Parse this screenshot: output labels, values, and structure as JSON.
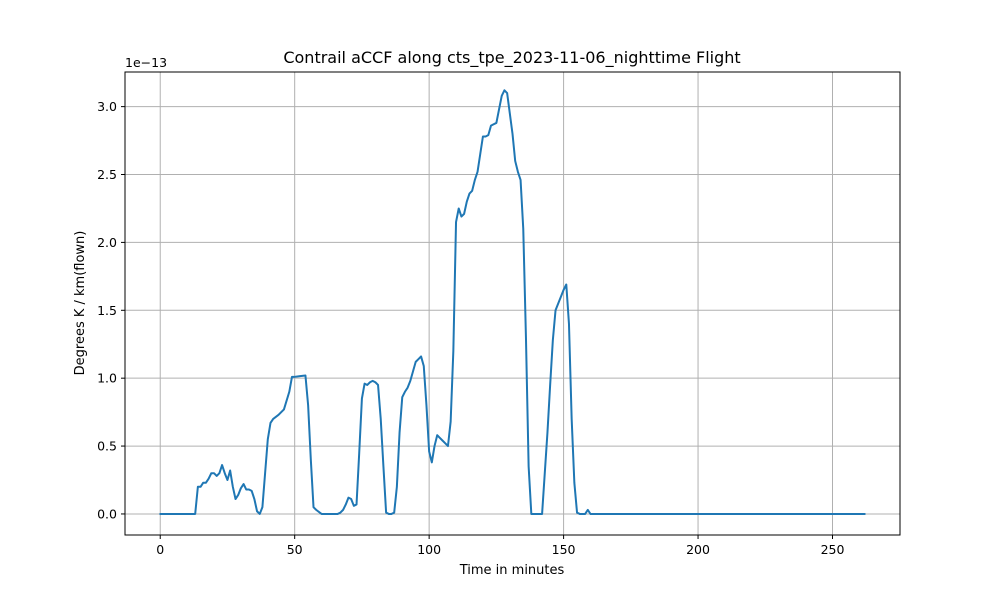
{
  "chart_data": {
    "type": "line",
    "title": "Contrail aCCF along cts_tpe_2023-11-06_nighttime Flight",
    "xlabel": "Time in minutes",
    "ylabel": "Degrees K / km(flown)",
    "offset_label": "1e−13",
    "xlim": [
      -13.1,
      275.1
    ],
    "ylim": [
      -0.155,
      3.255
    ],
    "xticks": [
      0,
      50,
      100,
      150,
      200,
      250
    ],
    "xtick_labels": [
      "0",
      "50",
      "100",
      "150",
      "200",
      "250"
    ],
    "yticks": [
      0.0,
      0.5,
      1.0,
      1.5,
      2.0,
      2.5,
      3.0
    ],
    "ytick_labels": [
      "0.0",
      "0.5",
      "1.0",
      "1.5",
      "2.0",
      "2.5",
      "3.0"
    ],
    "grid": true,
    "color": "#1f77b4",
    "series": [
      {
        "x": [
          0,
          13,
          14,
          15,
          16,
          17,
          18,
          19,
          20,
          21,
          22,
          23,
          24,
          25,
          26,
          27,
          28,
          29,
          30,
          31,
          32,
          33,
          34,
          35,
          36,
          37,
          38,
          39,
          40,
          41,
          42,
          44,
          46,
          48,
          49,
          50,
          52,
          54,
          55,
          56,
          57,
          58,
          60,
          62,
          64,
          66,
          67,
          68,
          69,
          70,
          71,
          72,
          73,
          74,
          75,
          76,
          77,
          78,
          79,
          80,
          81,
          82,
          83,
          84,
          85,
          86,
          87,
          88,
          89,
          90,
          91,
          92,
          93,
          94,
          95,
          96,
          97,
          98,
          99,
          100,
          101,
          102,
          103,
          104,
          105,
          106,
          107,
          108,
          109,
          110,
          111,
          112,
          113,
          114,
          115,
          116,
          117,
          118,
          119,
          120,
          121,
          122,
          123,
          124,
          125,
          126,
          127,
          128,
          129,
          130,
          131,
          132,
          133,
          134,
          135,
          136,
          137,
          138,
          139,
          140,
          141,
          142,
          143,
          144,
          145,
          146,
          147,
          148,
          149,
          150,
          151,
          152,
          153,
          154,
          155,
          156,
          157,
          158,
          159,
          160,
          170,
          200,
          262
        ],
        "y": [
          0.0,
          0.0,
          0.2,
          0.2,
          0.23,
          0.23,
          0.26,
          0.3,
          0.3,
          0.28,
          0.3,
          0.36,
          0.3,
          0.25,
          0.32,
          0.2,
          0.11,
          0.14,
          0.19,
          0.22,
          0.18,
          0.18,
          0.17,
          0.11,
          0.02,
          0.0,
          0.05,
          0.3,
          0.55,
          0.67,
          0.7,
          0.73,
          0.77,
          0.9,
          1.01,
          1.01,
          1.015,
          1.02,
          0.8,
          0.4,
          0.05,
          0.03,
          0.0,
          0.0,
          0.0,
          0.0,
          0.01,
          0.03,
          0.07,
          0.12,
          0.11,
          0.06,
          0.07,
          0.45,
          0.85,
          0.96,
          0.95,
          0.97,
          0.98,
          0.97,
          0.95,
          0.7,
          0.35,
          0.01,
          0.0,
          0.0,
          0.01,
          0.2,
          0.6,
          0.86,
          0.9,
          0.93,
          0.98,
          1.05,
          1.12,
          1.14,
          1.16,
          1.09,
          0.8,
          0.46,
          0.38,
          0.5,
          0.58,
          0.56,
          0.54,
          0.52,
          0.5,
          0.68,
          1.2,
          2.15,
          2.25,
          2.19,
          2.21,
          2.3,
          2.36,
          2.38,
          2.46,
          2.52,
          2.65,
          2.78,
          2.78,
          2.79,
          2.86,
          2.87,
          2.88,
          2.98,
          3.08,
          3.12,
          3.1,
          2.95,
          2.8,
          2.6,
          2.52,
          2.46,
          2.1,
          1.3,
          0.35,
          0.0,
          0.0,
          0.0,
          0.0,
          0.0,
          0.3,
          0.6,
          0.95,
          1.28,
          1.5,
          1.55,
          1.6,
          1.65,
          1.69,
          1.4,
          0.7,
          0.23,
          0.01,
          0.0,
          0.0,
          0.0,
          0.03,
          0.0,
          0.0,
          0.0,
          0.0
        ]
      }
    ]
  }
}
